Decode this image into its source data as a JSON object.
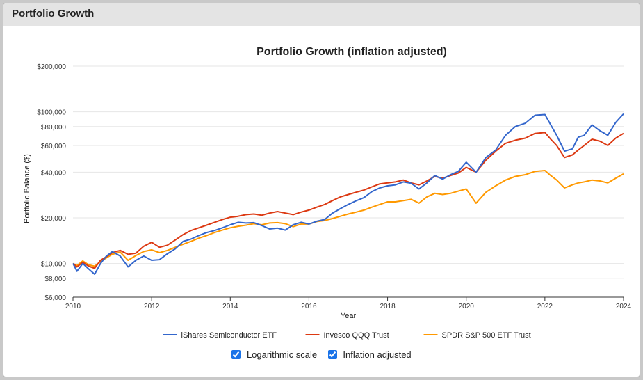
{
  "panel": {
    "title": "Portfolio Growth"
  },
  "controls": {
    "log_scale": {
      "label": "Logarithmic scale",
      "checked": true
    },
    "inflation": {
      "label": "Inflation adjusted",
      "checked": true
    }
  },
  "chart_data": {
    "type": "line",
    "title": "Portfolio Growth (inflation adjusted)",
    "xlabel": "Year",
    "ylabel": "Portfolio Balance ($)",
    "yscale": "log",
    "ylim": [
      6000,
      200000
    ],
    "xlim": [
      2010,
      2024
    ],
    "grid": true,
    "legend_position": "bottom",
    "x_ticks": [
      2010,
      2012,
      2014,
      2016,
      2018,
      2020,
      2022,
      2024
    ],
    "x_tick_labels": [
      "2010",
      "2012",
      "2014",
      "2016",
      "2018",
      "2020",
      "2022",
      "2024"
    ],
    "y_ticks": [
      6000,
      8000,
      10000,
      20000,
      40000,
      60000,
      80000,
      100000,
      200000
    ],
    "y_tick_labels": [
      "$6,000",
      "$8,000",
      "$10,000",
      "$20,000",
      "$40,000",
      "$60,000",
      "$80,000",
      "$100,000",
      "$200,000"
    ],
    "series": [
      {
        "name": "iShares Semiconductor ETF",
        "color": "#3366cc",
        "x": [
          2010,
          2010.1,
          2010.25,
          2010.4,
          2010.55,
          2010.7,
          2010.85,
          2011,
          2011.2,
          2011.4,
          2011.6,
          2011.8,
          2012,
          2012.2,
          2012.4,
          2012.6,
          2012.8,
          2013,
          2013.2,
          2013.4,
          2013.6,
          2013.8,
          2014,
          2014.2,
          2014.4,
          2014.6,
          2014.8,
          2015,
          2015.2,
          2015.4,
          2015.6,
          2015.8,
          2016,
          2016.2,
          2016.4,
          2016.6,
          2016.8,
          2017,
          2017.2,
          2017.4,
          2017.6,
          2017.8,
          2018,
          2018.2,
          2018.4,
          2018.6,
          2018.8,
          2019,
          2019.2,
          2019.4,
          2019.6,
          2019.8,
          2020,
          2020.25,
          2020.5,
          2020.75,
          2021,
          2021.25,
          2021.5,
          2021.75,
          2022,
          2022.15,
          2022.3,
          2022.5,
          2022.7,
          2022.85,
          2023,
          2023.2,
          2023.4,
          2023.6,
          2023.8,
          2024
        ],
        "values": [
          10000,
          8900,
          10000,
          9200,
          8500,
          10000,
          11200,
          12000,
          11200,
          9500,
          10500,
          11200,
          10500,
          10600,
          11600,
          12500,
          14000,
          14500,
          15300,
          16000,
          16500,
          17200,
          18000,
          18700,
          18500,
          18600,
          17800,
          16900,
          17100,
          16600,
          18000,
          18700,
          18200,
          19000,
          19500,
          21500,
          23000,
          24500,
          25900,
          27200,
          29800,
          31500,
          32500,
          33000,
          34500,
          33800,
          31000,
          34000,
          38000,
          36000,
          38500,
          40500,
          46500,
          40000,
          50000,
          56000,
          70000,
          80000,
          84000,
          95000,
          96000,
          82000,
          70000,
          55000,
          57000,
          68000,
          70000,
          82000,
          75000,
          70000,
          85000,
          97000
        ]
      },
      {
        "name": "Invesco QQQ Trust",
        "color": "#dc3912",
        "x": [
          2010,
          2010.1,
          2010.25,
          2010.4,
          2010.55,
          2010.7,
          2010.85,
          2011,
          2011.2,
          2011.4,
          2011.6,
          2011.8,
          2012,
          2012.2,
          2012.4,
          2012.6,
          2012.8,
          2013,
          2013.2,
          2013.4,
          2013.6,
          2013.8,
          2014,
          2014.2,
          2014.4,
          2014.6,
          2014.8,
          2015,
          2015.2,
          2015.4,
          2015.6,
          2015.8,
          2016,
          2016.2,
          2016.4,
          2016.6,
          2016.8,
          2017,
          2017.2,
          2017.4,
          2017.6,
          2017.8,
          2018,
          2018.2,
          2018.4,
          2018.6,
          2018.8,
          2019,
          2019.2,
          2019.4,
          2019.6,
          2019.8,
          2020,
          2020.25,
          2020.5,
          2020.75,
          2021,
          2021.25,
          2021.5,
          2021.75,
          2022,
          2022.15,
          2022.3,
          2022.5,
          2022.7,
          2022.85,
          2023,
          2023.2,
          2023.4,
          2023.6,
          2023.8,
          2024
        ],
        "values": [
          10000,
          9500,
          10200,
          9600,
          9300,
          10500,
          11100,
          11800,
          12200,
          11500,
          11700,
          13000,
          13800,
          12800,
          13200,
          14300,
          15500,
          16500,
          17200,
          17900,
          18700,
          19500,
          20200,
          20500,
          21000,
          21200,
          20800,
          21500,
          22000,
          21500,
          21000,
          21800,
          22500,
          23500,
          24500,
          26000,
          27500,
          28500,
          29500,
          30500,
          32000,
          33500,
          34000,
          34500,
          35500,
          34000,
          33000,
          35000,
          37500,
          36500,
          38000,
          39500,
          43000,
          40000,
          48000,
          55000,
          62000,
          65000,
          67000,
          72000,
          73000,
          66000,
          60000,
          50000,
          52000,
          56000,
          60000,
          66000,
          64000,
          60000,
          67000,
          72000
        ]
      },
      {
        "name": "SPDR S&P 500 ETF Trust",
        "color": "#ff9900",
        "x": [
          2010,
          2010.1,
          2010.25,
          2010.4,
          2010.55,
          2010.7,
          2010.85,
          2011,
          2011.2,
          2011.4,
          2011.6,
          2011.8,
          2012,
          2012.2,
          2012.4,
          2012.6,
          2012.8,
          2013,
          2013.2,
          2013.4,
          2013.6,
          2013.8,
          2014,
          2014.2,
          2014.4,
          2014.6,
          2014.8,
          2015,
          2015.2,
          2015.4,
          2015.6,
          2015.8,
          2016,
          2016.2,
          2016.4,
          2016.6,
          2016.8,
          2017,
          2017.2,
          2017.4,
          2017.6,
          2017.8,
          2018,
          2018.2,
          2018.4,
          2018.6,
          2018.8,
          2019,
          2019.2,
          2019.4,
          2019.6,
          2019.8,
          2020,
          2020.25,
          2020.5,
          2020.75,
          2021,
          2021.25,
          2021.5,
          2021.75,
          2022,
          2022.15,
          2022.3,
          2022.5,
          2022.7,
          2022.85,
          2023,
          2023.2,
          2023.4,
          2023.6,
          2023.8,
          2024
        ],
        "values": [
          10000,
          9700,
          10400,
          9800,
          9600,
          10300,
          10900,
          11500,
          11900,
          10500,
          11300,
          12000,
          12300,
          11800,
          12200,
          12800,
          13400,
          14000,
          14700,
          15300,
          16000,
          16600,
          17200,
          17600,
          17900,
          18300,
          18000,
          18500,
          18600,
          18300,
          17500,
          18200,
          18200,
          18900,
          19200,
          19800,
          20500,
          21200,
          21800,
          22500,
          23500,
          24500,
          25500,
          25500,
          26000,
          26500,
          25000,
          27500,
          29000,
          28500,
          29000,
          30000,
          31000,
          25000,
          29500,
          32500,
          35500,
          37500,
          38500,
          40500,
          41000,
          38000,
          35500,
          31500,
          33000,
          34000,
          34500,
          35500,
          35000,
          34000,
          36500,
          39000
        ]
      }
    ]
  }
}
